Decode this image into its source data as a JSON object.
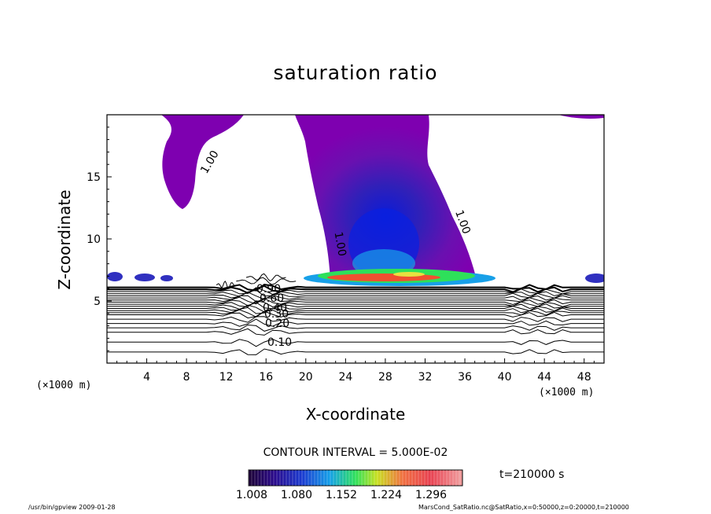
{
  "chart_data": {
    "type": "heatmap",
    "title": "saturation ratio",
    "xlabel": "X-coordinate",
    "ylabel": "Z-coordinate",
    "x_unit_left": "(×1000 m)",
    "x_unit_right": "(×1000 m)",
    "xlim": [
      0,
      50
    ],
    "ylim": [
      0,
      20
    ],
    "x_ticks": [
      4,
      8,
      12,
      16,
      20,
      24,
      28,
      32,
      36,
      40,
      44,
      48
    ],
    "y_ticks": [
      5,
      10,
      15
    ],
    "contour_labels": [
      "1.00",
      "1.00",
      "1.00",
      "0.90",
      "0.60",
      "0.40",
      "0.30",
      "0.20",
      "0.10"
    ],
    "contour_interval": "CONTOUR INTERVAL = 5.000E-02",
    "time": "t=210000 s",
    "colorbar": {
      "labels": [
        "1.008",
        "1.080",
        "1.152",
        "1.224",
        "1.296"
      ],
      "range": [
        1.0,
        1.33
      ],
      "colors": [
        "#1a0033",
        "#2a0a8a",
        "#1a3ad0",
        "#14a0e8",
        "#2ee05a",
        "#c8e020",
        "#f07040",
        "#e84050",
        "#f0a0a0"
      ]
    }
  },
  "footer": {
    "left": "/usr/bin/gpview  2009-01-28",
    "right": "MarsCond_SatRatio.nc@SatRatio,x=0:50000,z=0:20000,t=210000"
  }
}
